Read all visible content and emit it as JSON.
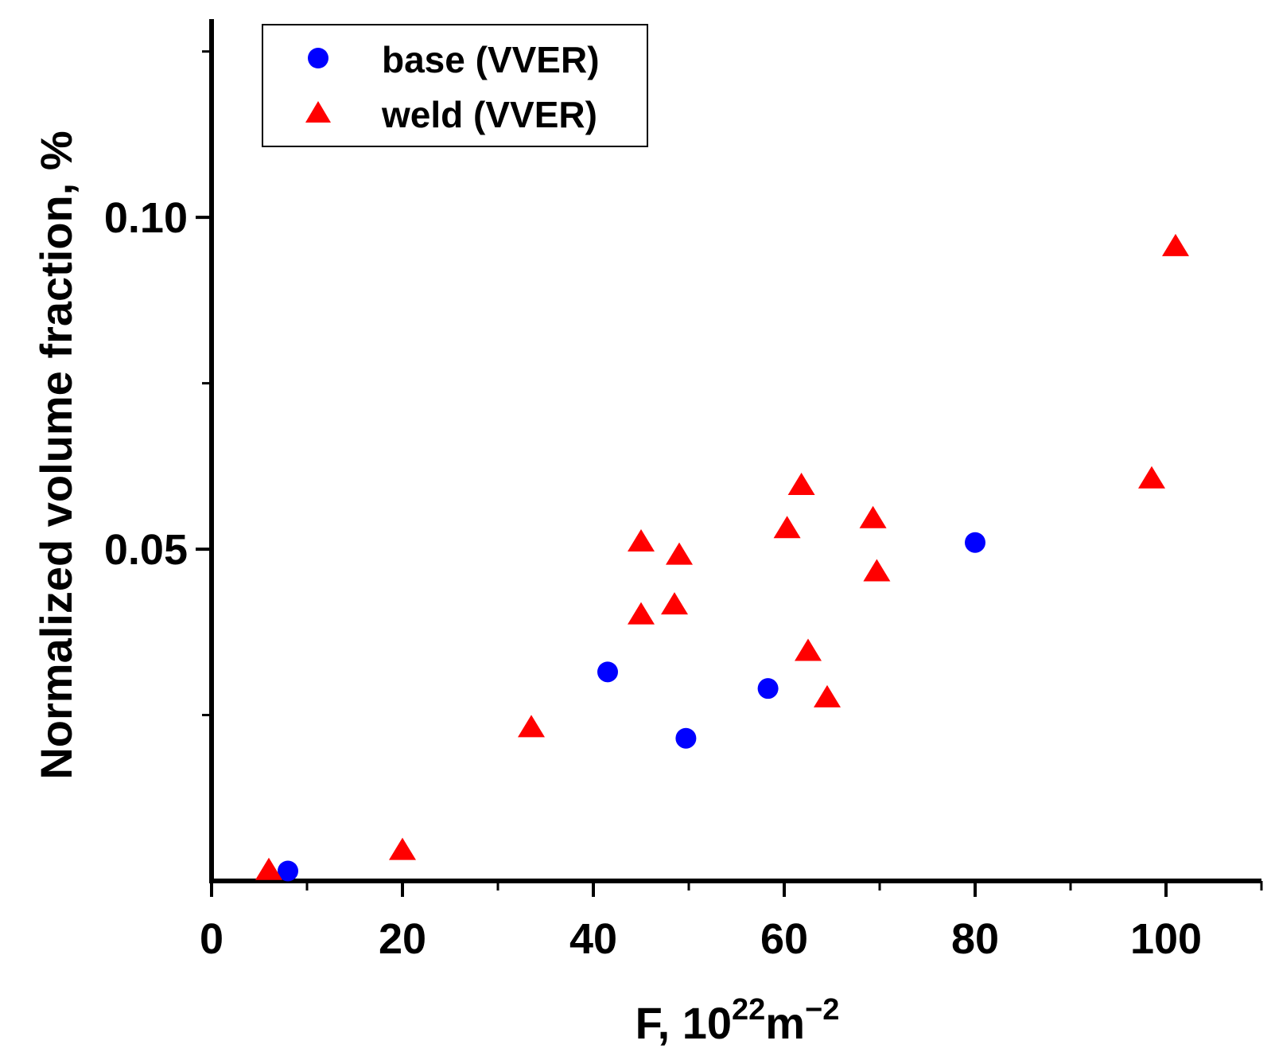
{
  "chart_data": {
    "type": "scatter",
    "title": "",
    "xlabel": "F, 10",
    "xlabel_sup": "22",
    "xlabel_unit": "m",
    "xlabel_unit_sup": "−2",
    "ylabel": "Normalized volume fraction, %",
    "xlim": [
      0,
      110
    ],
    "ylim": [
      0,
      0.13
    ],
    "x_ticks": [
      0,
      20,
      40,
      60,
      80,
      100
    ],
    "x_tick_labels": [
      "0",
      "20",
      "40",
      "60",
      "80",
      "100"
    ],
    "x_minor_ticks": [
      10,
      30,
      50,
      70,
      90,
      110
    ],
    "y_ticks": [
      0.05,
      0.1
    ],
    "y_tick_labels": [
      "0.05",
      "0.10"
    ],
    "y_minor_ticks": [
      0.025,
      0.075,
      0.125
    ],
    "legend_position": "top-left",
    "series": [
      {
        "name": "base (VVER)",
        "marker": "circle",
        "color": "#0000ff",
        "points": [
          [
            8,
            0.0015
          ],
          [
            41.5,
            0.0315
          ],
          [
            49.7,
            0.0215
          ],
          [
            58.3,
            0.029
          ],
          [
            80,
            0.051
          ]
        ]
      },
      {
        "name": "weld (VVER)",
        "marker": "triangle",
        "color": "#ff0000",
        "points": [
          [
            6,
            0.0015
          ],
          [
            20,
            0.0045
          ],
          [
            33.5,
            0.023
          ],
          [
            45,
            0.04
          ],
          [
            45,
            0.051
          ],
          [
            48.5,
            0.0415
          ],
          [
            49,
            0.049
          ],
          [
            60.3,
            0.053
          ],
          [
            61.8,
            0.0595
          ],
          [
            62.5,
            0.0345
          ],
          [
            64.5,
            0.0275
          ],
          [
            69.3,
            0.0545
          ],
          [
            69.7,
            0.0465
          ],
          [
            98.5,
            0.0605
          ],
          [
            101,
            0.0955
          ]
        ]
      }
    ]
  }
}
